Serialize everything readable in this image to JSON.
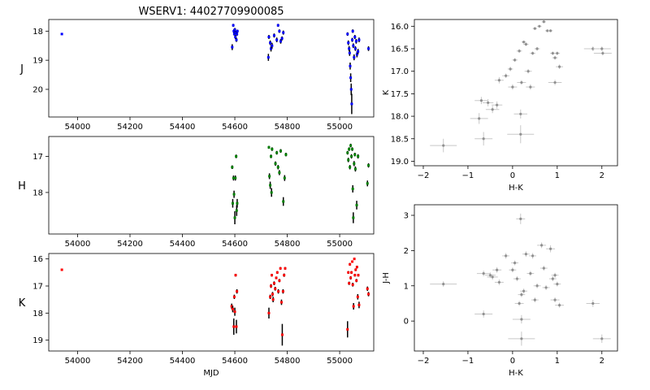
{
  "title": "WSERV1: 44027709900085",
  "chart_data": [
    {
      "type": "scatter",
      "panel": "light-curve-J",
      "xlabel": "",
      "ylabel": "J",
      "xlim": [
        53890,
        55130
      ],
      "ylim": [
        20.95,
        17.6
      ],
      "y_inverted": true,
      "xticks": [
        "54000",
        "54200",
        "54400",
        "54600",
        "54800",
        "55000"
      ],
      "yticks": [
        "18",
        "19",
        "20"
      ],
      "color": "#0000ff",
      "points": [
        [
          53940,
          18.1,
          0.03
        ],
        [
          54594,
          17.8,
          0.05
        ],
        [
          54596,
          18.0,
          0.06
        ],
        [
          54598,
          18.1,
          0.05
        ],
        [
          54600,
          17.95,
          0.06
        ],
        [
          54602,
          18.2,
          0.07
        ],
        [
          54604,
          18.05,
          0.06
        ],
        [
          54606,
          18.3,
          0.07
        ],
        [
          54608,
          18.1,
          0.06
        ],
        [
          54610,
          18.0,
          0.05
        ],
        [
          54590,
          18.55,
          0.1
        ],
        [
          54730,
          18.2,
          0.07
        ],
        [
          54735,
          18.4,
          0.08
        ],
        [
          54738,
          18.6,
          0.1
        ],
        [
          54742,
          18.5,
          0.1
        ],
        [
          54750,
          18.15,
          0.07
        ],
        [
          54760,
          18.3,
          0.08
        ],
        [
          54765,
          17.8,
          0.05
        ],
        [
          54770,
          18.0,
          0.06
        ],
        [
          54775,
          18.35,
          0.08
        ],
        [
          54780,
          18.25,
          0.07
        ],
        [
          54785,
          18.05,
          0.07
        ],
        [
          54728,
          18.9,
          0.12
        ],
        [
          55030,
          18.1,
          0.06
        ],
        [
          55033,
          18.4,
          0.08
        ],
        [
          55036,
          18.6,
          0.09
        ],
        [
          55038,
          18.75,
          0.1
        ],
        [
          55040,
          19.2,
          0.12
        ],
        [
          55042,
          19.6,
          0.15
        ],
        [
          55044,
          20.0,
          0.2
        ],
        [
          55046,
          20.5,
          0.35
        ],
        [
          55048,
          18.3,
          0.07
        ],
        [
          55050,
          18.0,
          0.06
        ],
        [
          55052,
          18.5,
          0.08
        ],
        [
          55055,
          18.9,
          0.1
        ],
        [
          55058,
          18.2,
          0.07
        ],
        [
          55060,
          18.6,
          0.08
        ],
        [
          55063,
          18.35,
          0.08
        ],
        [
          55066,
          18.8,
          0.1
        ],
        [
          55070,
          18.7,
          0.09
        ],
        [
          55074,
          18.3,
          0.08
        ],
        [
          55110,
          18.6,
          0.08
        ]
      ]
    },
    {
      "type": "scatter",
      "panel": "light-curve-H",
      "xlabel": "",
      "ylabel": "H",
      "xlim": [
        53890,
        55130
      ],
      "ylim": [
        19.15,
        16.45
      ],
      "y_inverted": true,
      "xticks": [
        "54000",
        "54200",
        "54400",
        "54600",
        "54800",
        "55000"
      ],
      "yticks": [
        "17",
        "18"
      ],
      "color": "#008000",
      "points": [
        [
          54590,
          17.3,
          0.05
        ],
        [
          54592,
          18.3,
          0.12
        ],
        [
          54595,
          17.6,
          0.07
        ],
        [
          54597,
          18.05,
          0.1
        ],
        [
          54600,
          18.7,
          0.18
        ],
        [
          54602,
          17.6,
          0.07
        ],
        [
          54605,
          17.0,
          0.05
        ],
        [
          54607,
          18.5,
          0.15
        ],
        [
          54609,
          18.3,
          0.12
        ],
        [
          54730,
          16.75,
          0.04
        ],
        [
          54732,
          17.55,
          0.08
        ],
        [
          54735,
          17.8,
          0.1
        ],
        [
          54738,
          17.0,
          0.05
        ],
        [
          54740,
          18.0,
          0.12
        ],
        [
          54742,
          16.8,
          0.05
        ],
        [
          54755,
          17.2,
          0.06
        ],
        [
          54760,
          16.9,
          0.05
        ],
        [
          54765,
          17.3,
          0.06
        ],
        [
          54770,
          17.45,
          0.07
        ],
        [
          54775,
          16.85,
          0.05
        ],
        [
          54785,
          18.25,
          0.12
        ],
        [
          54790,
          17.6,
          0.08
        ],
        [
          54795,
          16.95,
          0.05
        ],
        [
          55030,
          16.9,
          0.05
        ],
        [
          55033,
          17.1,
          0.06
        ],
        [
          55036,
          16.8,
          0.05
        ],
        [
          55039,
          17.3,
          0.06
        ],
        [
          55042,
          16.7,
          0.05
        ],
        [
          55045,
          17.0,
          0.06
        ],
        [
          55048,
          16.8,
          0.05
        ],
        [
          55050,
          17.9,
          0.1
        ],
        [
          55052,
          18.7,
          0.15
        ],
        [
          55055,
          17.2,
          0.07
        ],
        [
          55058,
          16.95,
          0.05
        ],
        [
          55060,
          17.35,
          0.07
        ],
        [
          55065,
          18.35,
          0.12
        ],
        [
          55070,
          17.0,
          0.06
        ],
        [
          55106,
          17.75,
          0.08
        ],
        [
          55110,
          17.25,
          0.06
        ]
      ]
    },
    {
      "type": "scatter",
      "panel": "light-curve-K",
      "xlabel": "MJD",
      "ylabel": "K",
      "xlim": [
        53890,
        55130
      ],
      "ylim": [
        19.4,
        15.8
      ],
      "y_inverted": true,
      "xticks": [
        "54000",
        "54200",
        "54400",
        "54600",
        "54800",
        "55000"
      ],
      "yticks": [
        "16",
        "17",
        "18",
        "19"
      ],
      "color": "#ff0000",
      "points": [
        [
          53940,
          16.4,
          0.03
        ],
        [
          54588,
          17.75,
          0.1
        ],
        [
          54592,
          17.85,
          0.12
        ],
        [
          54596,
          18.5,
          0.3
        ],
        [
          54598,
          17.4,
          0.08
        ],
        [
          54600,
          17.95,
          0.15
        ],
        [
          54603,
          16.6,
          0.05
        ],
        [
          54606,
          18.5,
          0.25
        ],
        [
          54608,
          17.2,
          0.08
        ],
        [
          54730,
          18.0,
          0.2
        ],
        [
          54735,
          17.4,
          0.08
        ],
        [
          54738,
          17.0,
          0.07
        ],
        [
          54741,
          16.6,
          0.05
        ],
        [
          54744,
          17.3,
          0.08
        ],
        [
          54746,
          17.5,
          0.1
        ],
        [
          54750,
          16.9,
          0.07
        ],
        [
          54754,
          17.1,
          0.07
        ],
        [
          54758,
          16.7,
          0.05
        ],
        [
          54762,
          16.5,
          0.05
        ],
        [
          54766,
          17.2,
          0.08
        ],
        [
          54770,
          16.8,
          0.06
        ],
        [
          54774,
          16.35,
          0.05
        ],
        [
          54778,
          17.6,
          0.1
        ],
        [
          54781,
          18.8,
          0.4
        ],
        [
          54784,
          17.2,
          0.08
        ],
        [
          54788,
          16.6,
          0.06
        ],
        [
          54792,
          16.35,
          0.05
        ],
        [
          55030,
          18.6,
          0.3
        ],
        [
          55033,
          16.5,
          0.05
        ],
        [
          55036,
          16.9,
          0.06
        ],
        [
          55039,
          16.2,
          0.05
        ],
        [
          55042,
          16.7,
          0.06
        ],
        [
          55045,
          16.5,
          0.05
        ],
        [
          55048,
          16.1,
          0.04
        ],
        [
          55050,
          16.95,
          0.07
        ],
        [
          55053,
          17.75,
          0.12
        ],
        [
          55056,
          16.0,
          0.04
        ],
        [
          55058,
          16.6,
          0.05
        ],
        [
          55061,
          16.4,
          0.05
        ],
        [
          55064,
          16.8,
          0.06
        ],
        [
          55066,
          16.3,
          0.05
        ],
        [
          55069,
          17.4,
          0.1
        ],
        [
          55071,
          16.6,
          0.05
        ],
        [
          55074,
          17.7,
          0.12
        ],
        [
          55106,
          17.1,
          0.08
        ],
        [
          55110,
          17.3,
          0.08
        ]
      ]
    },
    {
      "type": "scatter",
      "panel": "colour-magnitude",
      "xlabel": "H-K",
      "ylabel": "K",
      "xlim": [
        -2.2,
        2.35
      ],
      "ylim": [
        19.1,
        15.85
      ],
      "y_inverted": true,
      "xticks": [
        "−2",
        "−1",
        "0",
        "1",
        "2"
      ],
      "yticks": [
        "16.0",
        "16.5",
        "17.0",
        "17.5",
        "18.0",
        "18.5",
        "19.0"
      ],
      "color": "#808080",
      "points": [
        [
          -1.55,
          18.65,
          0.3,
          0.15
        ],
        [
          -0.65,
          18.5,
          0.2,
          0.15
        ],
        [
          -0.75,
          18.05,
          0.2,
          0.12
        ],
        [
          0.18,
          18.4,
          0.3,
          0.2
        ],
        [
          0.18,
          17.95,
          0.15,
          0.1
        ],
        [
          -0.7,
          17.65,
          0.15,
          0.08
        ],
        [
          -0.55,
          17.7,
          0.12,
          0.08
        ],
        [
          -0.35,
          17.75,
          0.12,
          0.08
        ],
        [
          -0.45,
          17.85,
          0.15,
          0.08
        ],
        [
          -0.3,
          17.2,
          0.1,
          0.07
        ],
        [
          -0.15,
          17.1,
          0.08,
          0.05
        ],
        [
          -0.05,
          16.95,
          0.06,
          0.05
        ],
        [
          0.0,
          17.35,
          0.1,
          0.06
        ],
        [
          0.05,
          16.75,
          0.06,
          0.04
        ],
        [
          0.15,
          16.55,
          0.06,
          0.04
        ],
        [
          0.2,
          17.25,
          0.1,
          0.05
        ],
        [
          0.3,
          16.4,
          0.06,
          0.04
        ],
        [
          0.35,
          17.0,
          0.08,
          0.05
        ],
        [
          0.4,
          17.35,
          0.1,
          0.06
        ],
        [
          0.45,
          16.6,
          0.06,
          0.04
        ],
        [
          0.55,
          16.5,
          0.06,
          0.04
        ],
        [
          0.6,
          16.0,
          0.05,
          0.03
        ],
        [
          0.7,
          15.9,
          0.05,
          0.03
        ],
        [
          0.78,
          16.1,
          0.05,
          0.03
        ],
        [
          0.85,
          16.1,
          0.05,
          0.03
        ],
        [
          0.9,
          16.6,
          0.06,
          0.04
        ],
        [
          0.95,
          16.7,
          0.06,
          0.04
        ],
        [
          1.0,
          16.6,
          0.06,
          0.04
        ],
        [
          1.05,
          16.9,
          0.08,
          0.05
        ],
        [
          0.95,
          17.25,
          0.15,
          0.06
        ],
        [
          0.5,
          16.05,
          0.05,
          0.03
        ],
        [
          0.25,
          16.35,
          0.05,
          0.03
        ],
        [
          1.8,
          16.5,
          0.2,
          0.05
        ],
        [
          2.0,
          16.5,
          0.2,
          0.05
        ],
        [
          2.02,
          16.6,
          0.2,
          0.05
        ]
      ]
    },
    {
      "type": "scatter",
      "panel": "colour-colour",
      "xlabel": "H-K",
      "ylabel": "J-H",
      "xlim": [
        -2.2,
        2.35
      ],
      "ylim": [
        -0.85,
        3.3
      ],
      "y_inverted": false,
      "xticks": [
        "−2",
        "−1",
        "0",
        "1",
        "2"
      ],
      "yticks": [
        "0",
        "1",
        "2",
        "3"
      ],
      "color": "#808080",
      "points": [
        [
          -1.55,
          1.05,
          0.3,
          0.08
        ],
        [
          -0.65,
          0.2,
          0.2,
          0.1
        ],
        [
          -0.65,
          1.35,
          0.15,
          0.08
        ],
        [
          -0.5,
          1.3,
          0.12,
          0.08
        ],
        [
          -0.45,
          1.25,
          0.12,
          0.08
        ],
        [
          -0.35,
          1.45,
          0.1,
          0.08
        ],
        [
          -0.3,
          1.1,
          0.1,
          0.08
        ],
        [
          -0.15,
          1.85,
          0.08,
          0.08
        ],
        [
          0.0,
          1.45,
          0.08,
          0.07
        ],
        [
          0.05,
          1.65,
          0.08,
          0.07
        ],
        [
          0.1,
          1.2,
          0.08,
          0.07
        ],
        [
          0.18,
          2.9,
          0.1,
          0.15
        ],
        [
          0.2,
          0.05,
          0.2,
          0.12
        ],
        [
          0.2,
          -0.5,
          0.3,
          0.2
        ],
        [
          0.2,
          0.75,
          0.08,
          0.07
        ],
        [
          0.25,
          0.85,
          0.08,
          0.07
        ],
        [
          0.3,
          1.9,
          0.08,
          0.08
        ],
        [
          0.45,
          1.85,
          0.08,
          0.08
        ],
        [
          0.4,
          1.35,
          0.08,
          0.07
        ],
        [
          0.5,
          0.6,
          0.08,
          0.07
        ],
        [
          0.55,
          1.0,
          0.08,
          0.07
        ],
        [
          0.65,
          2.15,
          0.1,
          0.08
        ],
        [
          0.7,
          1.5,
          0.08,
          0.07
        ],
        [
          0.75,
          0.95,
          0.08,
          0.07
        ],
        [
          0.85,
          2.05,
          0.1,
          0.1
        ],
        [
          0.9,
          1.2,
          0.08,
          0.07
        ],
        [
          0.95,
          0.6,
          0.1,
          0.07
        ],
        [
          1.0,
          1.05,
          0.08,
          0.07
        ],
        [
          1.05,
          0.45,
          0.1,
          0.07
        ],
        [
          0.15,
          0.5,
          0.1,
          0.07
        ],
        [
          1.8,
          0.5,
          0.15,
          0.1
        ],
        [
          2.0,
          -0.5,
          0.2,
          0.12
        ],
        [
          0.95,
          1.3,
          0.08,
          0.07
        ]
      ]
    }
  ]
}
